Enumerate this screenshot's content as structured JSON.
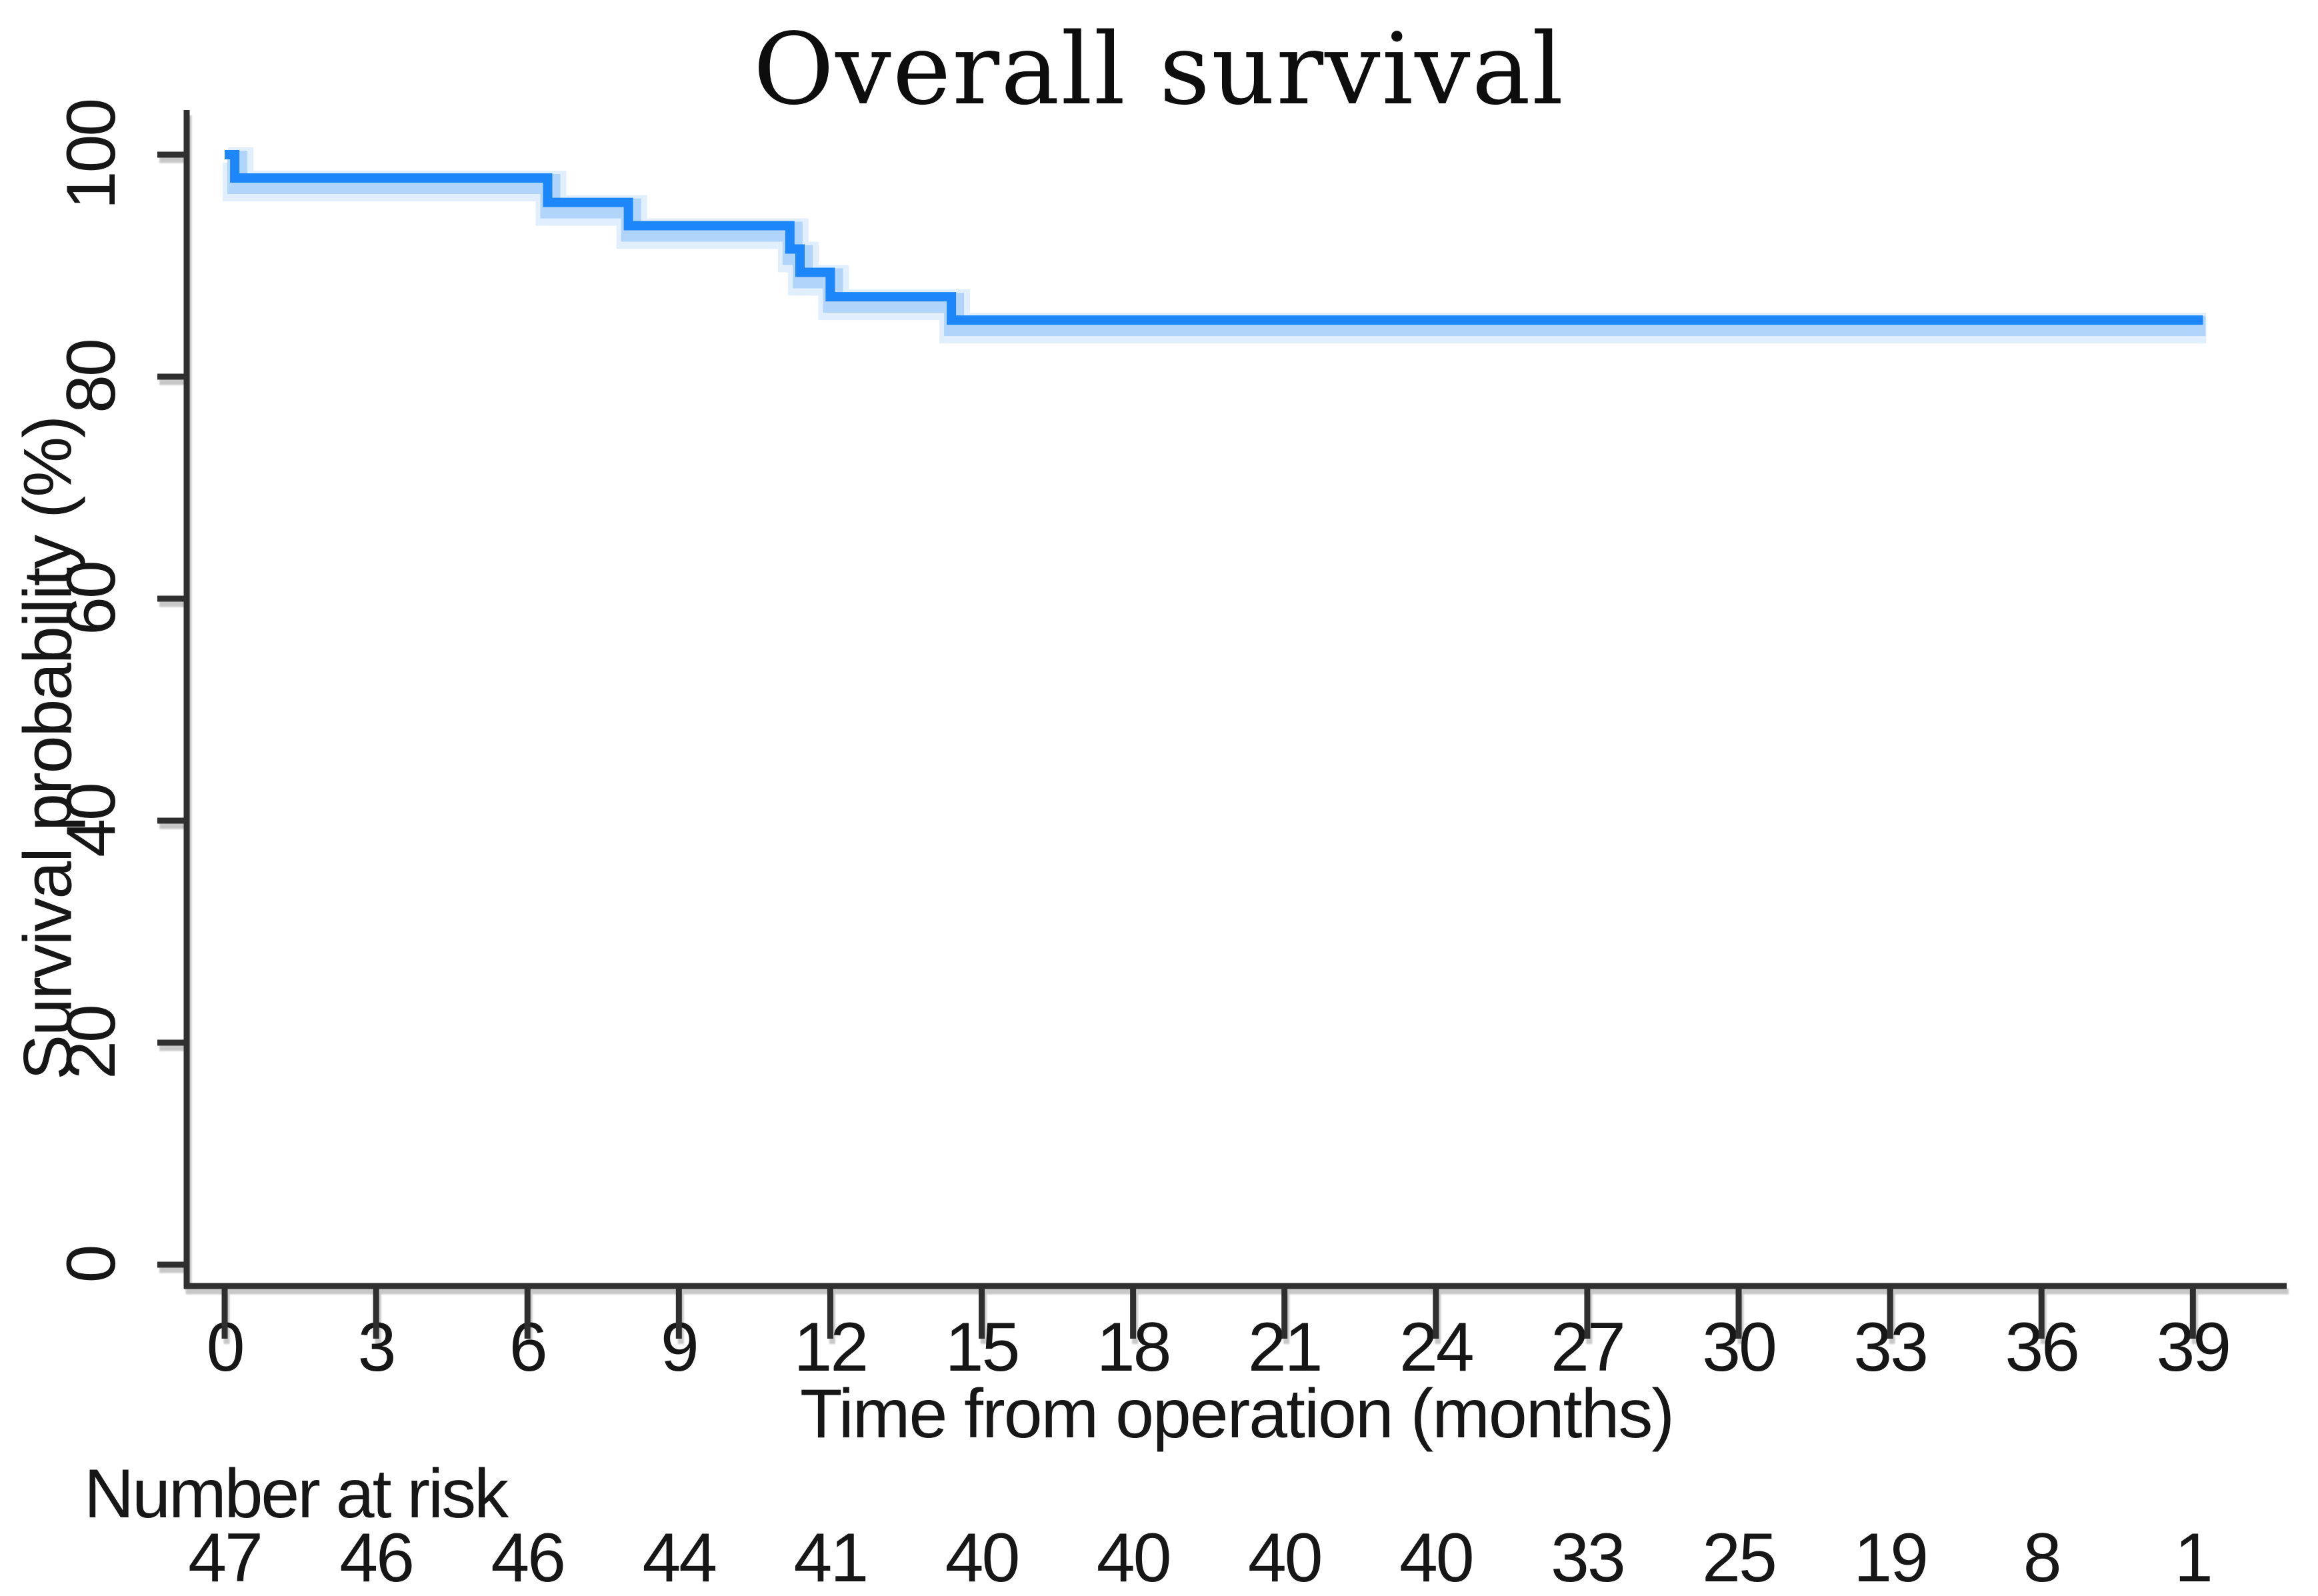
{
  "figure": {
    "background": "#ffffff"
  },
  "chart_data": {
    "type": "line",
    "subtype": "kaplan-meier-step-curve",
    "title": "Overall survival",
    "xlabel": "Time from operation (months)",
    "ylabel": "Survival probability (%)",
    "xlim": [
      0,
      40.5
    ],
    "ylim": [
      0,
      100
    ],
    "x_ticks": [
      0,
      3,
      6,
      9,
      12,
      15,
      18,
      21,
      24,
      27,
      30,
      33,
      36,
      39
    ],
    "y_ticks": [
      0,
      20,
      40,
      60,
      80,
      100
    ],
    "grid": false,
    "legend": "none",
    "line_color": "#1d86f8",
    "halo_color": "rgba(130,185,248,0.5)",
    "halo_outer_color": "rgba(175,212,250,0.38)",
    "axis_color": "#2f2f2f",
    "text_color": "#161616",
    "series": [
      {
        "name": "Overall survival",
        "color": "#1d86f8",
        "steps": [
          {
            "t": 0,
            "s": 100
          },
          {
            "t": 0.2,
            "s": 97.9
          },
          {
            "t": 6.4,
            "s": 95.7
          },
          {
            "t": 8.0,
            "s": 93.6
          },
          {
            "t": 11.2,
            "s": 91.5
          },
          {
            "t": 11.4,
            "s": 89.4
          },
          {
            "t": 12.0,
            "s": 87.2
          },
          {
            "t": 14.4,
            "s": 85.1
          }
        ],
        "end_t": 39.2
      }
    ],
    "risk_table": {
      "label": "Number at risk",
      "times": [
        0,
        3,
        6,
        9,
        12,
        15,
        18,
        21,
        24,
        27,
        30,
        33,
        36,
        39
      ],
      "counts": [
        47,
        46,
        46,
        44,
        41,
        40,
        40,
        40,
        40,
        33,
        25,
        19,
        8,
        1
      ]
    }
  }
}
